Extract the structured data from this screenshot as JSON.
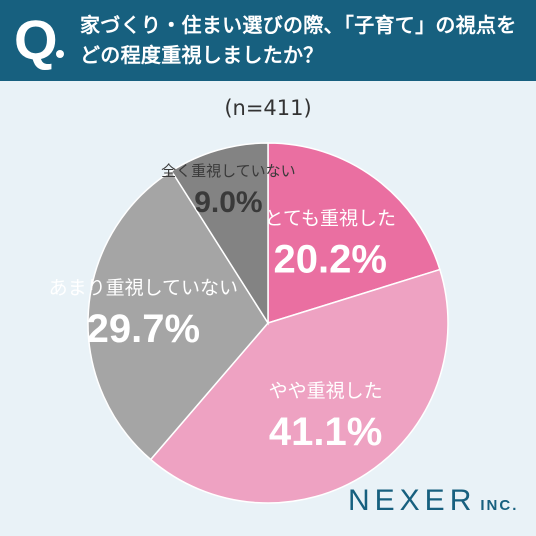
{
  "question": {
    "marker": "Q",
    "text": "家づくり・住まい選びの際、「子育て」の視点を\nどの程度重視しましたか？"
  },
  "sample_size": "(n=411)",
  "brand": {
    "name": "NEXER",
    "suffix": "INC."
  },
  "colors": {
    "header_bg": "#17607f",
    "background": "#e9f2f7",
    "slice_very": "#ea6fa1",
    "slice_some": "#eea2c2",
    "slice_not_much": "#a5a5a5",
    "slice_not_at_all": "#838383",
    "label_dark": "#3a3a3a",
    "label_light": "#ffffff"
  },
  "chart_data": {
    "type": "pie",
    "title": "",
    "start_angle_deg": 0,
    "direction": "clockwise",
    "slices": [
      {
        "label": "とても重視した",
        "value": 20.2,
        "display": "20.2%",
        "color": "#ea6fa1"
      },
      {
        "label": "やや重視した",
        "value": 41.1,
        "display": "41.1%",
        "color": "#eea2c2"
      },
      {
        "label": "あまり重視していない",
        "value": 29.7,
        "display": "29.7%",
        "color": "#a5a5a5"
      },
      {
        "label": "全く重視していない",
        "value": 9.0,
        "display": "9.0%",
        "color": "#838383"
      }
    ]
  }
}
